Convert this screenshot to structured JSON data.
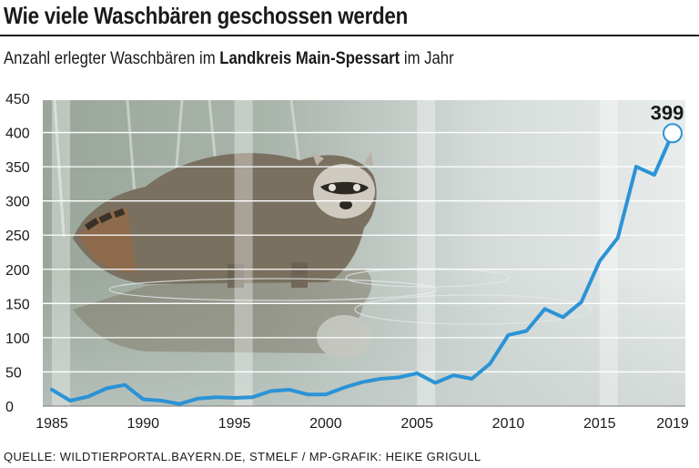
{
  "header": {
    "title": "Wie viele Waschbären geschossen werden",
    "subtitle_pre": "Anzahl erlegter Waschbären im ",
    "subtitle_bold": "Landkreis Main-Spessart",
    "subtitle_post": " im Jahr"
  },
  "footer": {
    "source": "QUELLE: WILDTIERPORTAL.BAYERN.DE, STMELF / MP-GRAFIK: HEIKE GRIGULL"
  },
  "colors": {
    "line": "#2b93d6",
    "grid": "#ffffff",
    "stripe": "rgba(255,255,255,0.35)",
    "text": "#1a1a1a"
  },
  "background_image": "raccoon-photo",
  "chart_data": {
    "type": "line",
    "title": "Wie viele Waschbären geschossen werden",
    "subtitle": "Anzahl erlegter Waschbären im Landkreis Main-Spessart im Jahr",
    "xlabel": "",
    "ylabel": "",
    "xlim": [
      1985,
      2019
    ],
    "ylim": [
      0,
      450
    ],
    "yticks": [
      0,
      50,
      100,
      150,
      200,
      250,
      300,
      350,
      400,
      450
    ],
    "xticks": [
      1985,
      1990,
      1995,
      2000,
      2005,
      2010,
      2015,
      2019
    ],
    "grid": true,
    "x": [
      1985,
      1986,
      1987,
      1988,
      1989,
      1990,
      1991,
      1992,
      1993,
      1994,
      1995,
      1996,
      1997,
      1998,
      1999,
      2000,
      2001,
      2002,
      2003,
      2004,
      2005,
      2006,
      2007,
      2008,
      2009,
      2010,
      2011,
      2012,
      2013,
      2014,
      2015,
      2016,
      2017,
      2018,
      2019
    ],
    "series": [
      {
        "values": [
          24,
          8,
          14,
          26,
          31,
          10,
          8,
          3,
          11,
          13,
          12,
          13,
          22,
          24,
          17,
          17,
          27,
          35,
          40,
          42,
          48,
          34,
          45,
          40,
          62,
          104,
          110,
          142,
          130,
          152,
          212,
          246,
          350,
          338,
          399
        ]
      }
    ],
    "annotations": [
      {
        "x": 2019,
        "y": 399,
        "text": "399"
      }
    ]
  }
}
